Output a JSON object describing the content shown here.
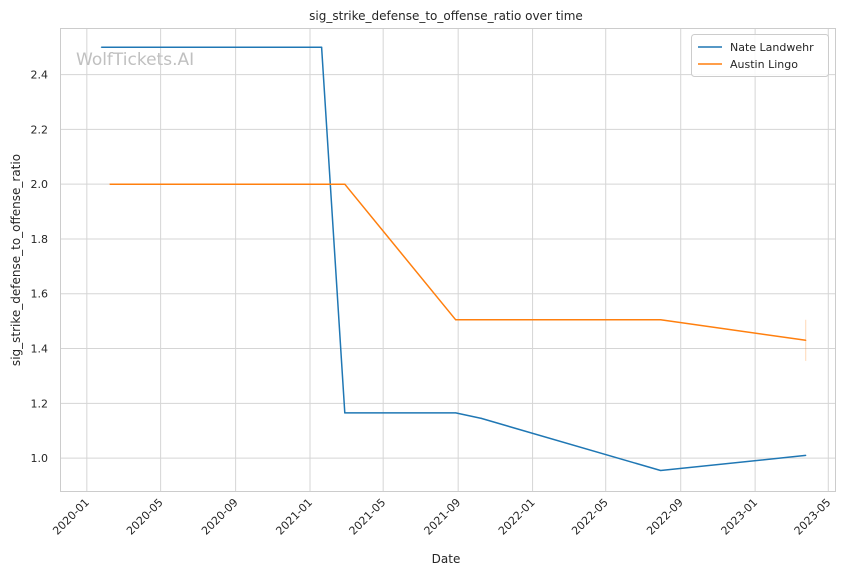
{
  "chart_data": {
    "type": "line",
    "title": "sig_strike_defense_to_offense_ratio over time",
    "xlabel": "Date",
    "ylabel": "sig_strike_defense_to_offense_ratio",
    "watermark": "WolfTickets.AI",
    "grid": true,
    "legend_position": "top-right",
    "xlim": [
      "2019-11-18",
      "2023-05-12"
    ],
    "ylim": [
      0.88,
      2.57
    ],
    "x_ticks": [
      "2020-01",
      "2020-05",
      "2020-09",
      "2021-01",
      "2021-05",
      "2021-09",
      "2022-01",
      "2022-05",
      "2022-09",
      "2023-01",
      "2023-05"
    ],
    "y_ticks": [
      "1.0",
      "1.2",
      "1.4",
      "1.6",
      "1.8",
      "2.0",
      "2.2",
      "2.4"
    ],
    "series": [
      {
        "name": "Nate Landwehr",
        "color": "#1f77b4",
        "points": [
          {
            "x": "2020-01-25",
            "y": 2.5
          },
          {
            "x": "2021-01-20",
            "y": 2.5
          },
          {
            "x": "2021-02-27",
            "y": 1.165
          },
          {
            "x": "2021-08-28",
            "y": 1.165
          },
          {
            "x": "2021-10-09",
            "y": 1.145
          },
          {
            "x": "2022-07-30",
            "y": 0.955
          },
          {
            "x": "2023-03-25",
            "y": 1.01
          }
        ]
      },
      {
        "name": "Austin Lingo",
        "color": "#ff7f0e",
        "points": [
          {
            "x": "2020-02-08",
            "y": 2.0
          },
          {
            "x": "2021-02-27",
            "y": 2.0
          },
          {
            "x": "2021-08-28",
            "y": 1.505
          },
          {
            "x": "2022-07-30",
            "y": 1.505
          },
          {
            "x": "2023-03-25",
            "y": 1.43
          }
        ]
      }
    ]
  }
}
